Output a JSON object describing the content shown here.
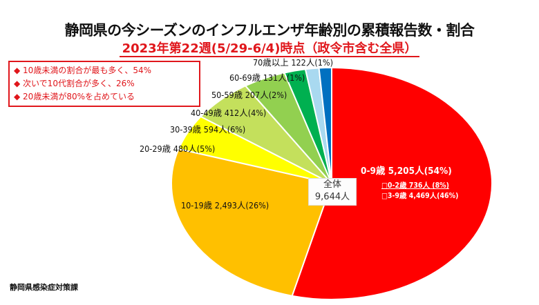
{
  "chart_data": {
    "type": "pie",
    "title": "静岡県の今シーズンのインフルエンザ年齢別の累積報告数・割合",
    "subtitle": "2023年第22週(5/29-6/4)時点（政令市含む全県）",
    "categories": [
      "0-9歳",
      "10-19歳",
      "20-29歳",
      "30-39歳",
      "40-49歳",
      "50-59歳",
      "60-69歳",
      "70歳以上"
    ],
    "values": [
      5205,
      2493,
      480,
      594,
      412,
      207,
      131,
      122
    ],
    "percent": [
      54,
      26,
      5,
      6,
      4,
      2,
      1,
      1
    ],
    "colors": [
      "#ff0000",
      "#ffc000",
      "#ffff00",
      "#c4e05c",
      "#92d050",
      "#00b050",
      "#a9d9f0",
      "#0070c0"
    ],
    "labels": [
      "0-9歳 5,205人(54%)",
      "10-19歳 2,493人(26%)",
      "20-29歳 480人(5%)",
      "30-39歳 594人(6%)",
      "40-49歳 412人(4%)",
      "50-59歳 207人(2%)",
      "60-69歳 131人(1%)",
      "70歳以上 122人(1%)"
    ],
    "sub_labels": [
      "□0-2歳 736人 (8%)",
      "□3-9歳 4,469人(46%)"
    ],
    "total_label": "全体",
    "total_value": "9,644人"
  },
  "notes": [
    "◆ 10歳未満の割合が最も多く、54%",
    "◆ 次いで10代割合が多く、26%",
    "◆ 20歳未満が80%を占めている"
  ],
  "source": "静岡県感染症対策課"
}
